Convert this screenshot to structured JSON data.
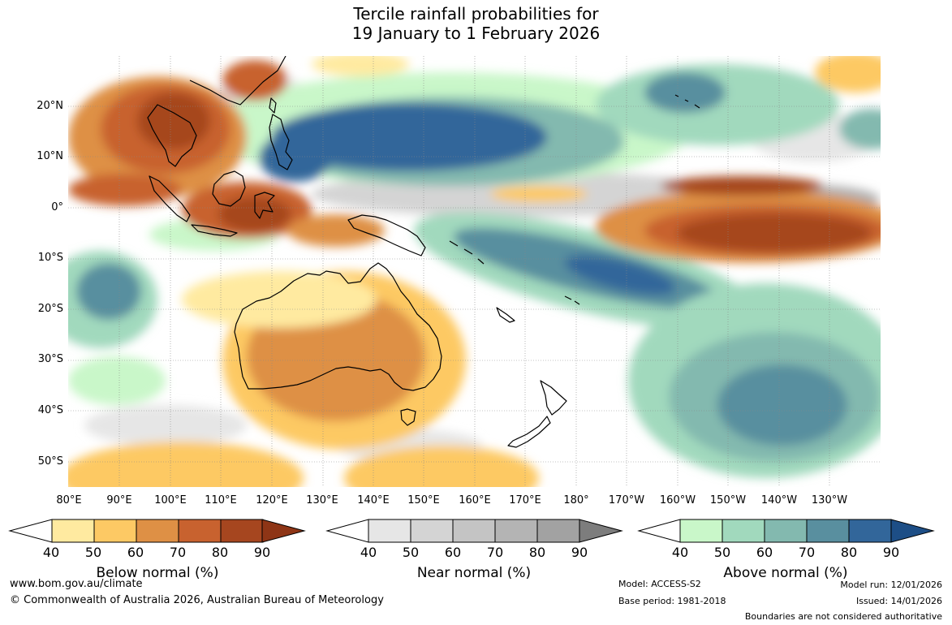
{
  "title": {
    "line1": "Tercile rainfall probabilities for",
    "line2": "19 January to 1 February 2026"
  },
  "lat_labels": [
    "20°N",
    "10°N",
    "0°",
    "10°S",
    "20°S",
    "30°S",
    "40°S",
    "50°S"
  ],
  "lon_labels": [
    "80°E",
    "90°E",
    "100°E",
    "110°E",
    "120°E",
    "130°E",
    "140°E",
    "150°E",
    "160°E",
    "170°E",
    "180°",
    "170°W",
    "160°W",
    "150°W",
    "140°W",
    "130°W"
  ],
  "colorbars": [
    {
      "name": "below",
      "title": "Below normal (%)",
      "ticks": [
        "40",
        "50",
        "60",
        "70",
        "80",
        "90"
      ],
      "colors": [
        "#ffeaa0",
        "#fdc964",
        "#de9045",
        "#c8622f",
        "#a6461f",
        "#8e3516"
      ]
    },
    {
      "name": "near",
      "title": "Near normal (%)",
      "ticks": [
        "40",
        "50",
        "60",
        "70",
        "80",
        "90"
      ],
      "colors": [
        "#e6e6e6",
        "#d4d4d4",
        "#c4c4c4",
        "#b4b4b4",
        "#a2a2a2",
        "#7d7d7d"
      ]
    },
    {
      "name": "above",
      "title": "Above normal (%)",
      "ticks": [
        "40",
        "50",
        "60",
        "70",
        "80",
        "90"
      ],
      "colors": [
        "#c9f7c9",
        "#a1d9bd",
        "#83b9af",
        "#598f9f",
        "#32669a",
        "#1d4e86"
      ]
    }
  ],
  "footer": {
    "url": "www.bom.gov.au/climate",
    "copyright": "© Commonwealth of Australia 2026, Australian Bureau of Meteorology",
    "model": "Model: ACCESS-S2",
    "base_period": "Base period: 1981-2018",
    "model_run": "Model run: 12/01/2026",
    "issued": "Issued: 14/01/2026",
    "disclaimer": "Boundaries are not considered authoritative"
  }
}
